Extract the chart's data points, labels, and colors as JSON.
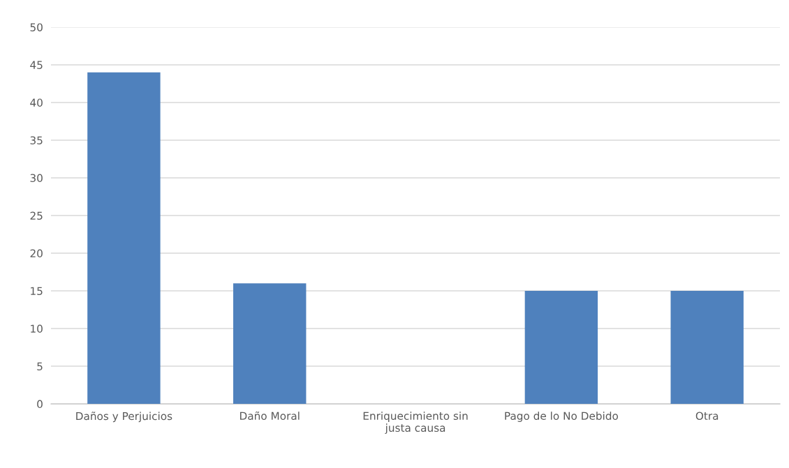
{
  "chart_data": {
    "type": "bar",
    "categories": [
      "Daños y Perjuicios",
      "Daño Moral",
      "Enriquecimiento sin justa causa",
      "Pago de lo No Debido",
      "Otra"
    ],
    "values": [
      44,
      16,
      0,
      15,
      15
    ],
    "color": "#4f81bd",
    "ylim": [
      0,
      50
    ],
    "yticks": [
      0,
      5,
      10,
      15,
      20,
      25,
      30,
      35,
      40,
      45,
      50
    ],
    "grid": "y",
    "legend": false
  }
}
